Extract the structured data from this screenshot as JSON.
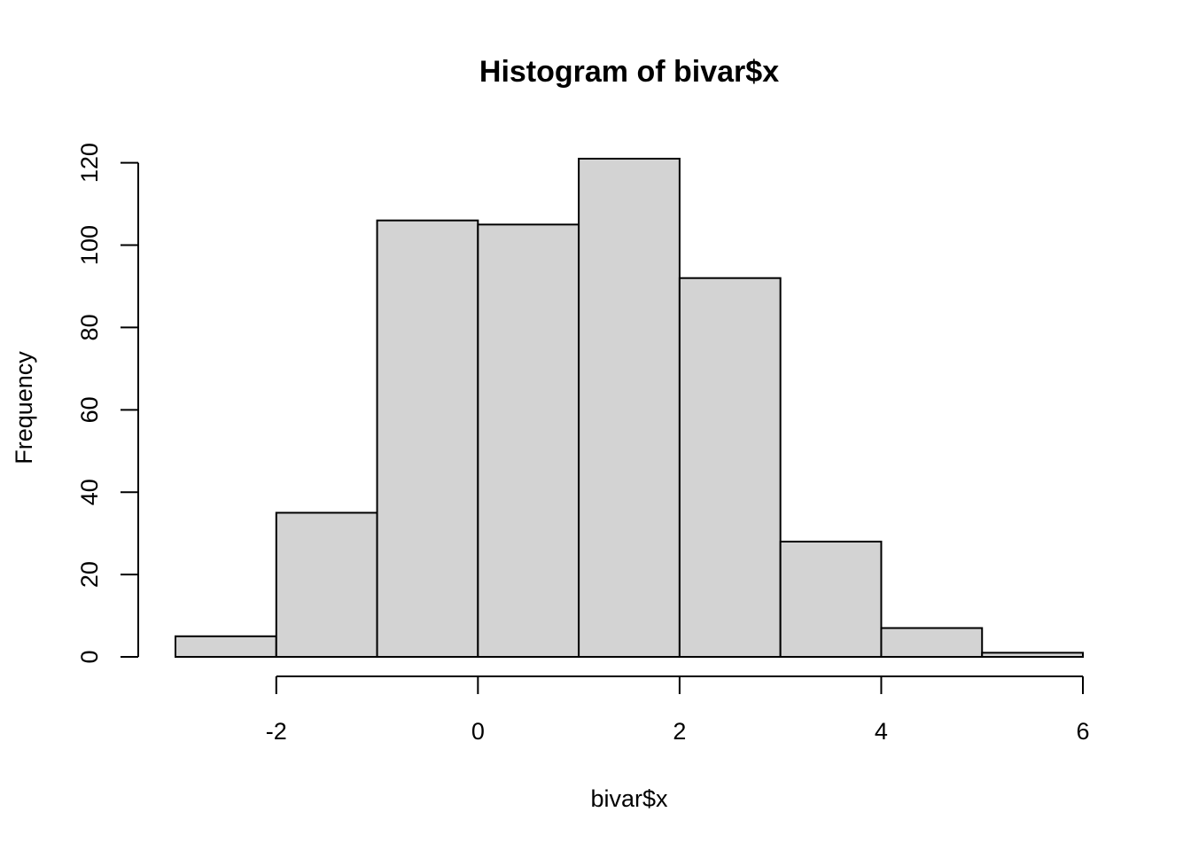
{
  "chart_data": {
    "type": "bar",
    "title": "Histogram of bivar$x",
    "xlabel": "bivar$x",
    "ylabel": "Frequency",
    "bins": [
      {
        "from": -3,
        "to": -2,
        "count": 5
      },
      {
        "from": -2,
        "to": -1,
        "count": 35
      },
      {
        "from": -1,
        "to": 0,
        "count": 106
      },
      {
        "from": 0,
        "to": 1,
        "count": 105
      },
      {
        "from": 1,
        "to": 2,
        "count": 121
      },
      {
        "from": 2,
        "to": 3,
        "count": 92
      },
      {
        "from": 3,
        "to": 4,
        "count": 28
      },
      {
        "from": 4,
        "to": 5,
        "count": 7
      },
      {
        "from": 5,
        "to": 6,
        "count": 1
      }
    ],
    "xticks": [
      -2,
      0,
      2,
      4,
      6
    ],
    "xtick_labels": [
      "-2",
      "0",
      "2",
      "4",
      "6"
    ],
    "yticks": [
      0,
      20,
      40,
      60,
      80,
      100,
      120
    ],
    "ytick_labels": [
      "0",
      "20",
      "40",
      "60",
      "80",
      "100",
      "120"
    ],
    "xlim": [
      -3,
      6
    ],
    "ylim": [
      0,
      121
    ],
    "grid": false,
    "bar_color": "#d3d3d3",
    "edge_color": "#000000"
  }
}
